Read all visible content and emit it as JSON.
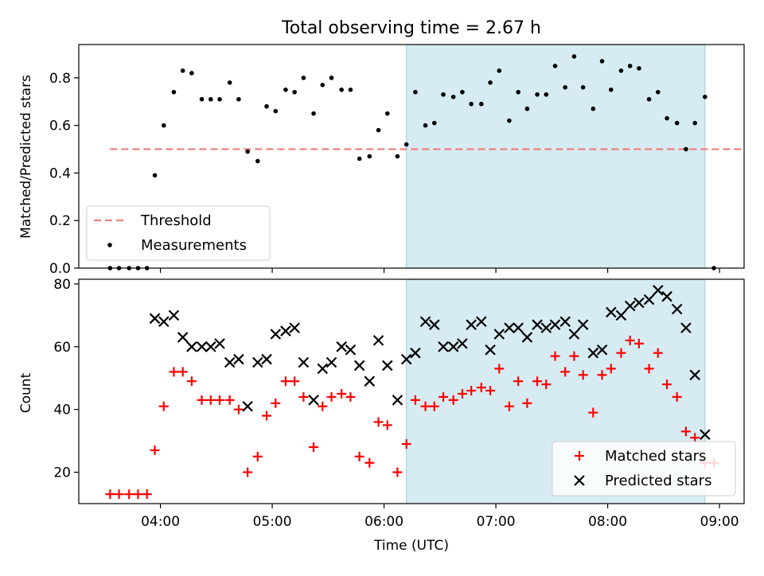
{
  "figure": {
    "title": "Total observing time = 2.67 h",
    "x_tick_labels": [
      "04:00",
      "05:00",
      "06:00",
      "07:00",
      "08:00",
      "09:00"
    ],
    "xlabel": "Time (UTC)"
  },
  "chart_data": [
    {
      "type": "scatter",
      "ylabel": "Matched/Predicted stars",
      "y_tick_labels": [
        "0.0",
        "0.2",
        "0.4",
        "0.6",
        "0.8"
      ],
      "ylim": [
        0.0,
        0.94
      ],
      "x_unit": "hours UTC",
      "xlim": [
        3.27,
        9.22
      ],
      "threshold": {
        "name": "Threshold",
        "value": 0.5,
        "x_range": [
          3.55,
          9.28
        ],
        "color": "#f08080"
      },
      "observing_window": {
        "x_range": [
          6.2,
          8.87
        ],
        "color": "#add8e6"
      },
      "legend": {
        "position": "lower-left",
        "entries": [
          "Threshold",
          "Measurements"
        ]
      },
      "series": [
        {
          "name": "Measurements",
          "color": "#000000",
          "x": [
            3.55,
            3.63,
            3.72,
            3.8,
            3.88,
            3.95,
            4.03,
            4.12,
            4.2,
            4.28,
            4.37,
            4.45,
            4.53,
            4.62,
            4.7,
            4.78,
            4.87,
            4.95,
            5.03,
            5.12,
            5.2,
            5.28,
            5.37,
            5.45,
            5.53,
            5.62,
            5.7,
            5.78,
            5.87,
            5.95,
            6.03,
            6.12,
            6.2,
            6.28,
            6.37,
            6.45,
            6.53,
            6.62,
            6.7,
            6.78,
            6.87,
            6.95,
            7.03,
            7.12,
            7.2,
            7.28,
            7.37,
            7.45,
            7.53,
            7.62,
            7.7,
            7.78,
            7.87,
            7.95,
            8.03,
            8.12,
            8.2,
            8.28,
            8.37,
            8.45,
            8.53,
            8.62,
            8.7,
            8.78,
            8.87,
            8.95
          ],
          "y": [
            0.0,
            0.0,
            0.0,
            0.0,
            0.0,
            0.39,
            0.6,
            0.74,
            0.83,
            0.82,
            0.71,
            0.71,
            0.71,
            0.78,
            0.71,
            0.49,
            0.45,
            0.68,
            0.66,
            0.75,
            0.74,
            0.8,
            0.65,
            0.77,
            0.8,
            0.75,
            0.75,
            0.46,
            0.47,
            0.58,
            0.65,
            0.47,
            0.52,
            0.74,
            0.6,
            0.61,
            0.73,
            0.72,
            0.74,
            0.69,
            0.69,
            0.78,
            0.83,
            0.62,
            0.74,
            0.67,
            0.73,
            0.73,
            0.85,
            0.76,
            0.89,
            0.76,
            0.67,
            0.87,
            0.75,
            0.83,
            0.85,
            0.84,
            0.71,
            0.74,
            0.63,
            0.61,
            0.5,
            0.61,
            0.72,
            0.0
          ]
        }
      ]
    },
    {
      "type": "scatter",
      "ylabel": "Count",
      "y_tick_labels": [
        "20",
        "40",
        "60",
        "80"
      ],
      "ylim": [
        10,
        81.5
      ],
      "x_unit": "hours UTC",
      "xlim": [
        3.27,
        9.22
      ],
      "observing_window": {
        "x_range": [
          6.2,
          8.87
        ],
        "color": "#add8e6"
      },
      "legend": {
        "position": "lower-right",
        "entries": [
          "Matched stars",
          "Predicted stars"
        ]
      },
      "series": [
        {
          "name": "Matched stars",
          "color": "#ff0000",
          "marker": "plus",
          "x": [
            3.55,
            3.63,
            3.72,
            3.8,
            3.88,
            3.95,
            4.03,
            4.12,
            4.2,
            4.28,
            4.37,
            4.45,
            4.53,
            4.62,
            4.7,
            4.78,
            4.87,
            4.95,
            5.03,
            5.12,
            5.2,
            5.28,
            5.37,
            5.45,
            5.53,
            5.62,
            5.7,
            5.78,
            5.87,
            5.95,
            6.03,
            6.12,
            6.2,
            6.28,
            6.37,
            6.45,
            6.53,
            6.62,
            6.7,
            6.78,
            6.87,
            6.95,
            7.03,
            7.12,
            7.2,
            7.28,
            7.37,
            7.45,
            7.53,
            7.62,
            7.7,
            7.78,
            7.87,
            7.95,
            8.03,
            8.12,
            8.2,
            8.28,
            8.37,
            8.45,
            8.53,
            8.62,
            8.7,
            8.78,
            8.87,
            8.95
          ],
          "y": [
            13,
            13,
            13,
            13,
            13,
            27,
            41,
            52,
            52,
            49,
            43,
            43,
            43,
            43,
            40,
            20,
            25,
            38,
            42,
            49,
            49,
            44,
            28,
            41,
            44,
            45,
            44,
            25,
            23,
            36,
            35,
            20,
            29,
            43,
            41,
            41,
            44,
            43,
            45,
            46,
            47,
            46,
            53,
            41,
            49,
            42,
            49,
            48,
            57,
            52,
            57,
            51,
            39,
            51,
            53,
            58,
            62,
            61,
            53,
            58,
            48,
            44,
            33,
            31,
            23,
            23
          ]
        },
        {
          "name": "Predicted stars",
          "color": "#000000",
          "marker": "x",
          "x": [
            3.95,
            4.03,
            4.12,
            4.2,
            4.28,
            4.37,
            4.45,
            4.53,
            4.62,
            4.7,
            4.78,
            4.87,
            4.95,
            5.03,
            5.12,
            5.2,
            5.28,
            5.37,
            5.45,
            5.53,
            5.62,
            5.7,
            5.78,
            5.87,
            5.95,
            6.03,
            6.12,
            6.2,
            6.28,
            6.37,
            6.45,
            6.53,
            6.62,
            6.7,
            6.78,
            6.87,
            6.95,
            7.03,
            7.12,
            7.2,
            7.28,
            7.37,
            7.45,
            7.53,
            7.62,
            7.7,
            7.78,
            7.87,
            7.95,
            8.03,
            8.12,
            8.2,
            8.28,
            8.37,
            8.45,
            8.53,
            8.62,
            8.7,
            8.78,
            8.87
          ],
          "y": [
            69,
            68,
            70,
            63,
            60,
            60,
            60,
            61,
            55,
            56,
            41,
            55,
            56,
            64,
            65,
            66,
            55,
            43,
            53,
            55,
            60,
            59,
            54,
            49,
            62,
            54,
            43,
            56,
            58,
            68,
            67,
            60,
            60,
            61,
            67,
            68,
            59,
            64,
            66,
            66,
            63,
            67,
            66,
            67,
            68,
            64,
            67,
            58,
            59,
            71,
            70,
            73,
            74,
            75,
            78,
            76,
            72,
            66,
            51,
            32
          ]
        }
      ]
    }
  ]
}
